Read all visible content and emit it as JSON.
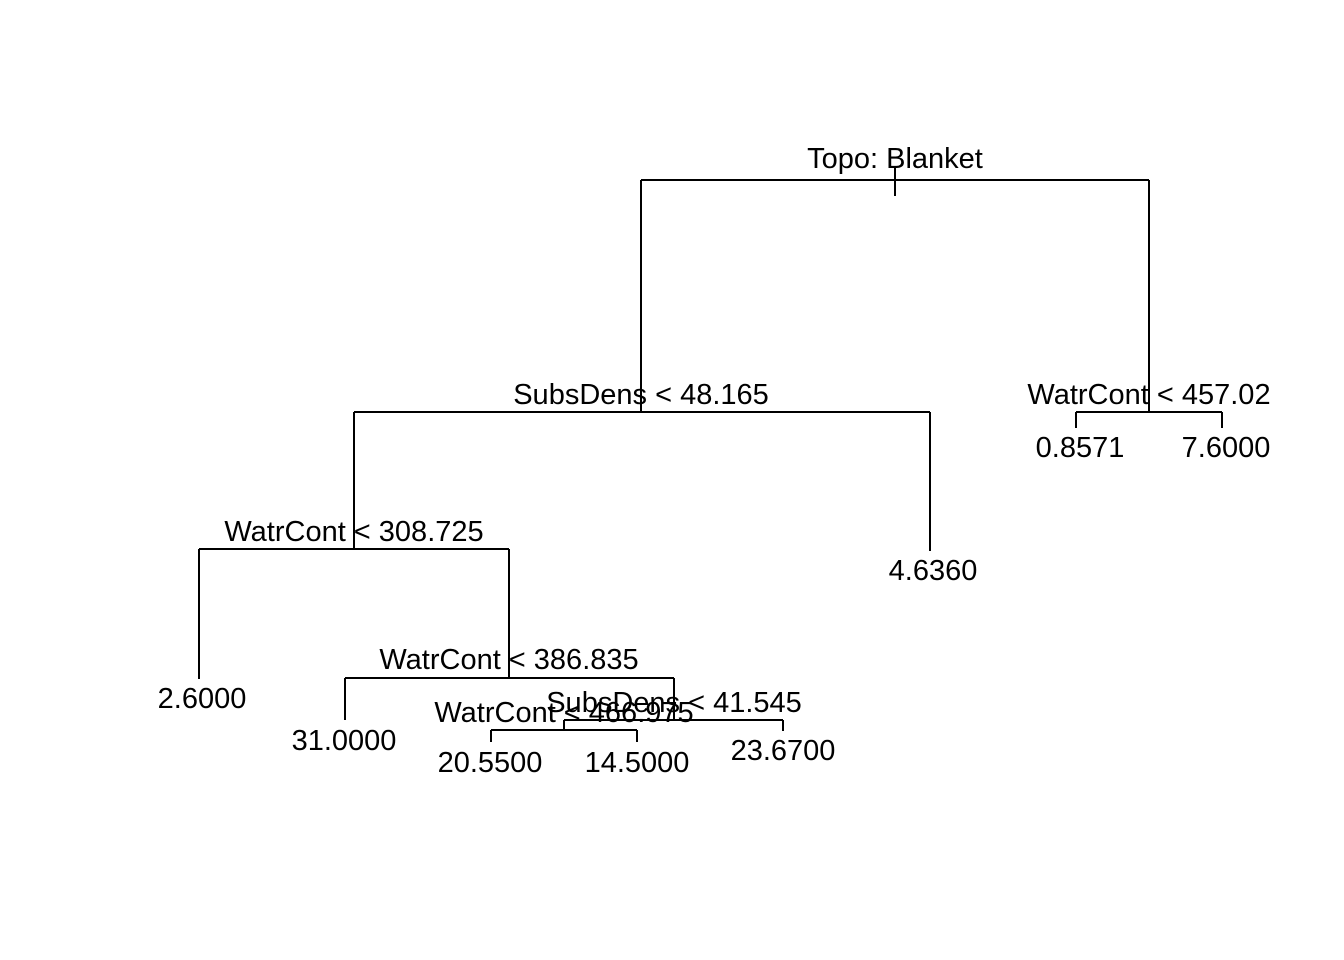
{
  "tree": {
    "splits": {
      "root": "Topo: Blanket",
      "subs_dens_1": "SubsDens < 48.165",
      "watr_cont_1": "WatrCont < 457.02",
      "watr_cont_2": "WatrCont < 308.725",
      "watr_cont_3": "WatrCont < 386.835",
      "subs_dens_2": "SubsDens < 41.545",
      "watr_cont_4": "WatrCont < 466.975"
    },
    "leaves": {
      "l1": "0.8571",
      "l2": "7.6000",
      "l3": "4.6360",
      "l4": "2.6000",
      "l5": "31.0000",
      "l6": "20.5500",
      "l7": "14.5000",
      "l8": "23.6700"
    }
  }
}
